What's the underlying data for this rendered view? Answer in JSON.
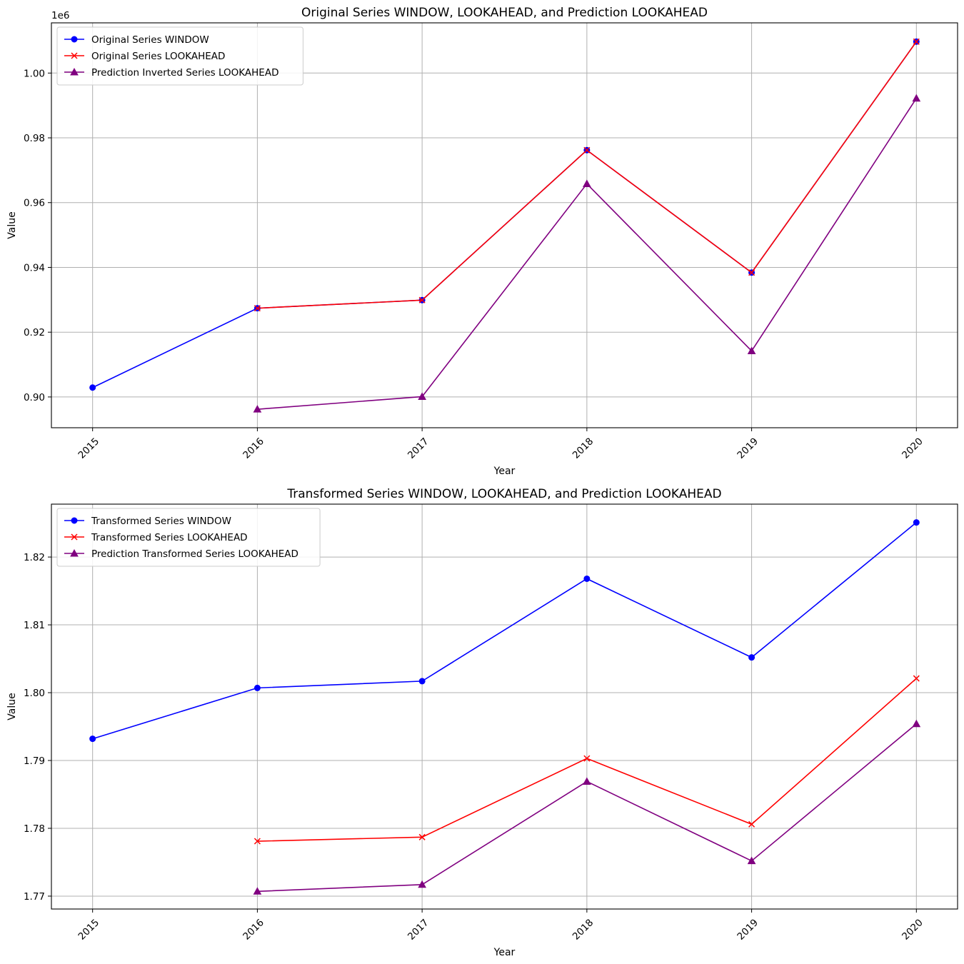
{
  "chart_data": [
    {
      "type": "line",
      "title": "Original Series WINDOW, LOOKAHEAD, and Prediction LOOKAHEAD",
      "xlabel": "Year",
      "ylabel": "Value",
      "y_offset_label": "1e6",
      "x": [
        2015,
        2016,
        2017,
        2018,
        2019,
        2020
      ],
      "xticks": [
        "2015",
        "2016",
        "2017",
        "2018",
        "2019",
        "2020"
      ],
      "xtick_rotation": 45,
      "xlim": [
        2014.75,
        2020.25
      ],
      "ylim": [
        0.8905,
        1.0155
      ],
      "yticks": [
        0.9,
        0.92,
        0.94,
        0.96,
        0.98,
        1.0
      ],
      "yticklabels": [
        "0.90",
        "0.92",
        "0.94",
        "0.96",
        "0.98",
        "1.00"
      ],
      "grid": true,
      "legend_position": "upper left",
      "series": [
        {
          "name": "Original Series WINDOW",
          "color": "#0000ff",
          "marker": "circle",
          "x": [
            2015,
            2016,
            2017,
            2018,
            2019,
            2020
          ],
          "values": [
            0.9029,
            0.9274,
            0.9299,
            0.9762,
            0.9384,
            1.0097
          ]
        },
        {
          "name": "Original Series LOOKAHEAD",
          "color": "#ff0000",
          "marker": "x",
          "x": [
            2016,
            2017,
            2018,
            2019,
            2020
          ],
          "values": [
            0.9274,
            0.9299,
            0.9762,
            0.9384,
            1.0097
          ]
        },
        {
          "name": "Prediction Inverted Series LOOKAHEAD",
          "color": "#800080",
          "marker": "triangle",
          "x": [
            2016,
            2017,
            2018,
            2019,
            2020
          ],
          "values": [
            0.8962,
            0.9001,
            0.9658,
            0.9142,
            0.9922
          ]
        }
      ]
    },
    {
      "type": "line",
      "title": "Transformed Series WINDOW, LOOKAHEAD, and Prediction LOOKAHEAD",
      "xlabel": "Year",
      "ylabel": "Value",
      "y_offset_label": "",
      "x": [
        2015,
        2016,
        2017,
        2018,
        2019,
        2020
      ],
      "xticks": [
        "2015",
        "2016",
        "2017",
        "2018",
        "2019",
        "2020"
      ],
      "xtick_rotation": 45,
      "xlim": [
        2014.75,
        2020.25
      ],
      "ylim": [
        1.7681,
        1.8278
      ],
      "yticks": [
        1.77,
        1.78,
        1.79,
        1.8,
        1.81,
        1.82
      ],
      "yticklabels": [
        "1.77",
        "1.78",
        "1.79",
        "1.80",
        "1.81",
        "1.82"
      ],
      "grid": true,
      "legend_position": "upper left",
      "series": [
        {
          "name": "Transformed Series WINDOW",
          "color": "#0000ff",
          "marker": "circle",
          "x": [
            2015,
            2016,
            2017,
            2018,
            2019,
            2020
          ],
          "values": [
            1.7932,
            1.8007,
            1.8017,
            1.8168,
            1.8052,
            1.8251
          ]
        },
        {
          "name": "Transformed Series LOOKAHEAD",
          "color": "#ff0000",
          "marker": "x",
          "x": [
            2016,
            2017,
            2018,
            2019,
            2020
          ],
          "values": [
            1.7781,
            1.7787,
            1.7903,
            1.7806,
            1.8021
          ]
        },
        {
          "name": "Prediction Transformed Series LOOKAHEAD",
          "color": "#800080",
          "marker": "triangle",
          "x": [
            2016,
            2017,
            2018,
            2019,
            2020
          ],
          "values": [
            1.7707,
            1.7717,
            1.7869,
            1.7752,
            1.7954
          ]
        }
      ]
    }
  ]
}
